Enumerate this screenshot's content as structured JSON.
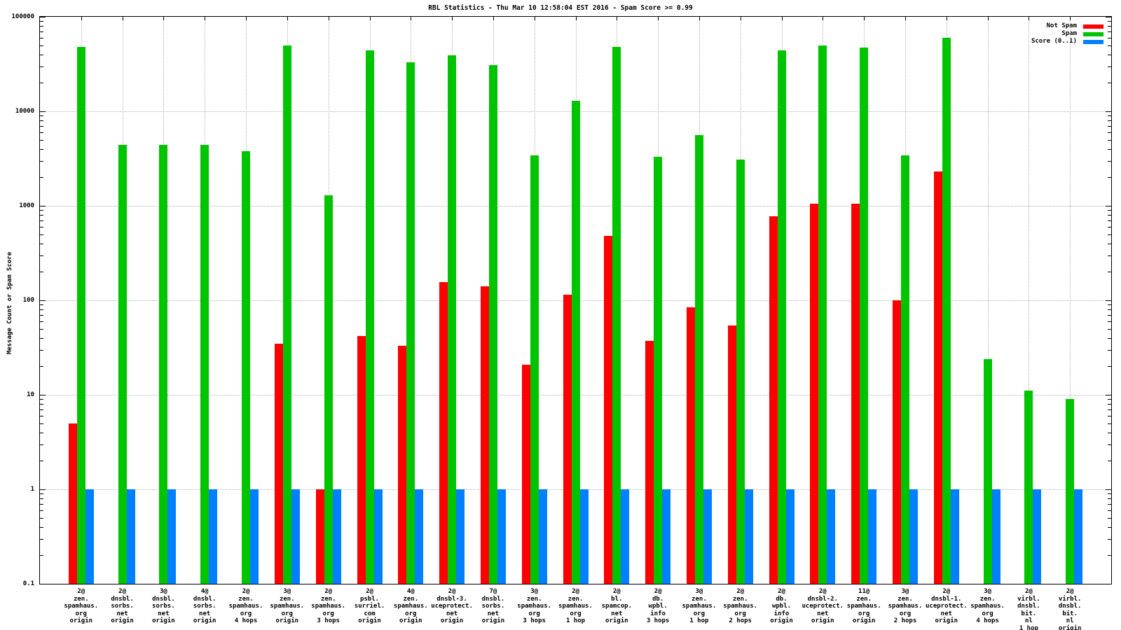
{
  "page": {
    "background": "#ffffff"
  },
  "chart_data": {
    "type": "bar",
    "title": "RBL Statistics - Thu Mar 10 12:58:04 EST 2016 - Spam Score >= 0.99",
    "ylabel": "Message Count or Spam Score",
    "xlabel": "",
    "y_scale": "log",
    "ylim": [
      0.1,
      100000
    ],
    "y_ticks": [
      "100000",
      "10000",
      "1000",
      "100",
      "10",
      "1",
      "0.1"
    ],
    "grid": "dotted, horizontal at decades and vertical at each category",
    "legend_position": "top-right inside plot",
    "colors": {
      "not_spam": "#ff0000",
      "spam": "#00c400",
      "score": "#0080ff",
      "grid": "#b0b0b0",
      "axis": "#000000",
      "background": "#ffffff"
    },
    "legend": [
      {
        "label": "Not Spam",
        "color": "#ff0000"
      },
      {
        "label": "Spam",
        "color": "#00c400"
      },
      {
        "label": "Score (0..1)",
        "color": "#0080ff"
      }
    ],
    "categories": [
      {
        "label_lines": [
          "2@",
          "zen.",
          "spamhaus.",
          "org",
          "origin"
        ]
      },
      {
        "label_lines": [
          "2@",
          "dnsbl.",
          "sorbs.",
          "net",
          "origin"
        ]
      },
      {
        "label_lines": [
          "3@",
          "dnsbl.",
          "sorbs.",
          "net",
          "origin"
        ]
      },
      {
        "label_lines": [
          "4@",
          "dnsbl.",
          "sorbs.",
          "net",
          "origin"
        ]
      },
      {
        "label_lines": [
          "2@",
          "zen.",
          "spamhaus.",
          "org",
          "4 hops"
        ]
      },
      {
        "label_lines": [
          "3@",
          "zen.",
          "spamhaus.",
          "org",
          "origin"
        ]
      },
      {
        "label_lines": [
          "2@",
          "zen.",
          "spamhaus.",
          "org",
          "3 hops"
        ]
      },
      {
        "label_lines": [
          "2@",
          "psbl.",
          "surriel.",
          "com",
          "origin"
        ]
      },
      {
        "label_lines": [
          "4@",
          "zen.",
          "spamhaus.",
          "org",
          "origin"
        ]
      },
      {
        "label_lines": [
          "2@",
          "dnsbl-3.",
          "uceprotect.",
          "net",
          "origin"
        ]
      },
      {
        "label_lines": [
          "7@",
          "dnsbl.",
          "sorbs.",
          "net",
          "origin"
        ]
      },
      {
        "label_lines": [
          "3@",
          "zen.",
          "spamhaus.",
          "org",
          "3 hops"
        ]
      },
      {
        "label_lines": [
          "2@",
          "zen.",
          "spamhaus.",
          "org",
          "1 hop"
        ]
      },
      {
        "label_lines": [
          "2@",
          "bl.",
          "spamcop.",
          "net",
          "origin"
        ]
      },
      {
        "label_lines": [
          "2@",
          "db.",
          "wpbl.",
          "info",
          "3 hops"
        ]
      },
      {
        "label_lines": [
          "3@",
          "zen.",
          "spamhaus.",
          "org",
          "1 hop"
        ]
      },
      {
        "label_lines": [
          "2@",
          "zen.",
          "spamhaus.",
          "org",
          "2 hops"
        ]
      },
      {
        "label_lines": [
          "2@",
          "db.",
          "wpbl.",
          "info",
          "origin"
        ]
      },
      {
        "label_lines": [
          "2@",
          "dnsbl-2.",
          "uceprotect.",
          "net",
          "origin"
        ]
      },
      {
        "label_lines": [
          "11@",
          "zen.",
          "spamhaus.",
          "org",
          "origin"
        ]
      },
      {
        "label_lines": [
          "3@",
          "zen.",
          "spamhaus.",
          "org",
          "2 hops"
        ]
      },
      {
        "label_lines": [
          "2@",
          "dnsbl-1.",
          "uceprotect.",
          "net",
          "origin"
        ]
      },
      {
        "label_lines": [
          "3@",
          "zen.",
          "spamhaus.",
          "org",
          "4 hops"
        ]
      },
      {
        "label_lines": [
          "2@",
          "virbl.",
          "dnsbl.",
          "bit.",
          "nl",
          "1 hop"
        ]
      },
      {
        "label_lines": [
          "2@",
          "virbl.",
          "dnsbl.",
          "bit.",
          "nl",
          "origin"
        ]
      }
    ],
    "series": [
      {
        "name": "Not Spam",
        "color": "#ff0000",
        "values": [
          5,
          null,
          null,
          null,
          null,
          35,
          1,
          42,
          33,
          155,
          140,
          21,
          115,
          480,
          37,
          85,
          54,
          780,
          1050,
          1050,
          100,
          2300,
          null,
          null,
          null
        ]
      },
      {
        "name": "Spam",
        "color": "#00c400",
        "values": [
          48000,
          4400,
          4400,
          4400,
          3800,
          50000,
          1300,
          44000,
          33000,
          39000,
          31000,
          3400,
          13000,
          48000,
          3300,
          5600,
          3100,
          44000,
          50000,
          47000,
          3400,
          60000,
          24,
          11,
          9
        ]
      },
      {
        "name": "Score (0..1)",
        "color": "#0080ff",
        "values": [
          1,
          1,
          1,
          1,
          1,
          1,
          1,
          1,
          1,
          1,
          1,
          1,
          1,
          1,
          1,
          1,
          1,
          1,
          1,
          1,
          1,
          1,
          1,
          1,
          1
        ]
      }
    ]
  }
}
